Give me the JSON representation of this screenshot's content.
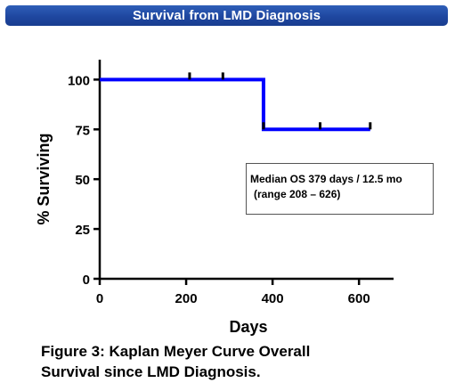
{
  "header": {
    "title": "Survival from LMD Diagnosis"
  },
  "chart_data": {
    "type": "line",
    "step": true,
    "title": "",
    "xlabel": "Days",
    "ylabel": "% Surviving",
    "xlim": [
      0,
      680
    ],
    "ylim": [
      0,
      110
    ],
    "x_ticks": [
      0,
      200,
      400,
      600
    ],
    "y_ticks": [
      0,
      25,
      50,
      75,
      100
    ],
    "series": [
      {
        "color": "#0000ff",
        "points": [
          {
            "x": 0,
            "y": 100
          },
          {
            "x": 379,
            "y": 100
          },
          {
            "x": 379,
            "y": 75
          },
          {
            "x": 626,
            "y": 75
          }
        ],
        "censored": [
          {
            "x": 208,
            "y": 100
          },
          {
            "x": 285,
            "y": 100
          },
          {
            "x": 379,
            "y": 75
          },
          {
            "x": 510,
            "y": 75
          },
          {
            "x": 626,
            "y": 75
          }
        ]
      }
    ],
    "grid": false,
    "annotation": {
      "line1": "Median OS 379 days / 12.5 mo",
      "line2": "(range 208 – 626)"
    }
  },
  "caption": {
    "line1": "Figure 3: Kaplan Meyer Curve Overall",
    "line2": "Survival since LMD Diagnosis."
  }
}
